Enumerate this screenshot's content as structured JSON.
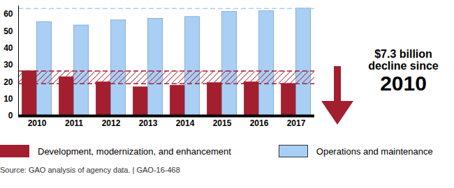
{
  "chart_data": {
    "type": "bar",
    "categories": [
      "2010",
      "2011",
      "2012",
      "2013",
      "2014",
      "2015",
      "2016",
      "2017"
    ],
    "series": [
      {
        "name": "Development, modernization, and enhancement",
        "color": "#a31e2e",
        "values": [
          26.5,
          23,
          20,
          17,
          18,
          19.5,
          20,
          19
        ]
      },
      {
        "name": "Operations and maintenance",
        "color": "#a9cff5",
        "values": [
          55.5,
          53.5,
          56.5,
          57.5,
          58.5,
          61.5,
          62,
          63.5
        ]
      }
    ],
    "ylim": [
      0,
      65
    ],
    "yticks": [
      0,
      10,
      20,
      30,
      40,
      50,
      60
    ],
    "annotation": [
      "$7.3 billion",
      "decline since",
      "2010"
    ],
    "caption": "Source: GAO analysis of agency data. | GAO-16-468",
    "grid": false,
    "legend": "bottom"
  }
}
